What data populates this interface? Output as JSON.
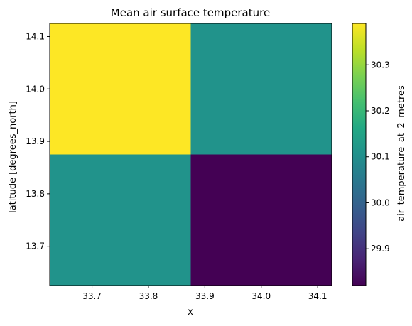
{
  "chart_data": {
    "type": "heatmap",
    "title": "Mean air surface temperature",
    "xlabel": "x",
    "ylabel": "latitude [degrees_north]",
    "colorbar_label": "air_temperature_at_2_metres",
    "colormap": "viridis",
    "x_centers": [
      33.75,
      34.0
    ],
    "y_centers": [
      14.0,
      13.75
    ],
    "xlim": [
      33.625,
      34.125
    ],
    "ylim": [
      13.625,
      14.125
    ],
    "values": [
      [
        30.39,
        30.11
      ],
      [
        30.11,
        29.82
      ]
    ],
    "color_range": [
      29.82,
      30.39
    ],
    "x_ticks": [
      33.7,
      33.8,
      33.9,
      34.0,
      34.1
    ],
    "x_tick_labels": [
      "33.7",
      "33.8",
      "33.9",
      "34.0",
      "34.1"
    ],
    "y_ticks": [
      13.7,
      13.8,
      13.9,
      14.0,
      14.1
    ],
    "y_tick_labels": [
      "13.7",
      "13.8",
      "13.9",
      "14.0",
      "14.1"
    ],
    "colorbar_ticks": [
      29.9,
      30.0,
      30.1,
      30.2,
      30.3
    ],
    "colorbar_tick_labels": [
      "29.9",
      "30.0",
      "30.1",
      "30.2",
      "30.3"
    ],
    "grid": false,
    "legend": "none"
  }
}
